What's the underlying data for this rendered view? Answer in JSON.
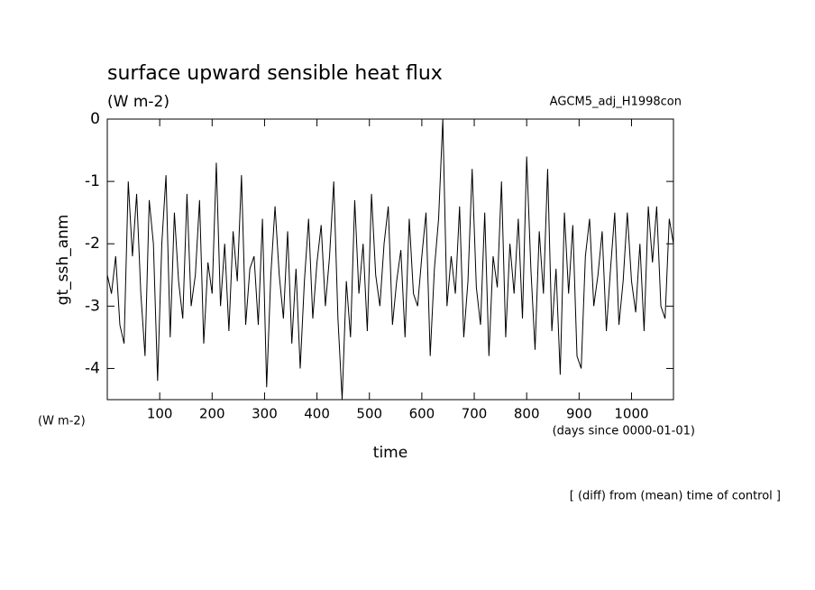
{
  "chart_data": {
    "type": "line",
    "title": "surface upward sensible heat flux",
    "subtitle": "(W m-2)",
    "dataset_label": "AGCM5_adj_H1998con",
    "ylabel": "gt_ssh_anm",
    "yunit_label": "(W m-2)",
    "xlabel": "time",
    "xunit_label": "(days since 0000-01-01)",
    "note": "[ (diff) from (mean) time of control ]",
    "xlim": [
      0,
      1080
    ],
    "ylim": [
      -4.5,
      0
    ],
    "xticks": [
      100,
      200,
      300,
      400,
      500,
      600,
      700,
      800,
      900,
      1000
    ],
    "yticks": [
      0,
      -1,
      -2,
      -3,
      -4
    ],
    "color": "#000000",
    "x": [
      0,
      8,
      16,
      24,
      32,
      40,
      48,
      56,
      64,
      72,
      80,
      88,
      96,
      104,
      112,
      120,
      128,
      136,
      144,
      152,
      160,
      168,
      176,
      184,
      192,
      200,
      208,
      216,
      224,
      232,
      240,
      248,
      256,
      264,
      272,
      280,
      288,
      296,
      304,
      312,
      320,
      328,
      336,
      344,
      352,
      360,
      368,
      376,
      384,
      392,
      400,
      408,
      416,
      424,
      432,
      440,
      448,
      456,
      464,
      472,
      480,
      488,
      496,
      504,
      512,
      520,
      528,
      536,
      544,
      552,
      560,
      568,
      576,
      584,
      592,
      600,
      608,
      616,
      624,
      632,
      640,
      648,
      656,
      664,
      672,
      680,
      688,
      696,
      704,
      712,
      720,
      728,
      736,
      744,
      752,
      760,
      768,
      776,
      784,
      792,
      800,
      808,
      816,
      824,
      832,
      840,
      848,
      856,
      864,
      872,
      880,
      888,
      896,
      904,
      912,
      920,
      928,
      936,
      944,
      952,
      960,
      968,
      976,
      984,
      992,
      1000,
      1008,
      1016,
      1024,
      1032,
      1040,
      1048,
      1056,
      1064,
      1072,
      1080
    ],
    "values": [
      -2.5,
      -2.8,
      -2.2,
      -3.3,
      -3.6,
      -1.0,
      -2.2,
      -1.2,
      -2.8,
      -3.8,
      -1.3,
      -2.0,
      -4.2,
      -2.0,
      -0.9,
      -3.5,
      -1.5,
      -2.6,
      -3.2,
      -1.2,
      -3.0,
      -2.5,
      -1.3,
      -3.6,
      -2.3,
      -2.8,
      -0.7,
      -3.0,
      -2.0,
      -3.4,
      -1.8,
      -2.6,
      -0.9,
      -3.3,
      -2.4,
      -2.2,
      -3.3,
      -1.6,
      -4.3,
      -2.5,
      -1.4,
      -2.5,
      -3.2,
      -1.8,
      -3.6,
      -2.4,
      -4.0,
      -2.6,
      -1.6,
      -3.2,
      -2.3,
      -1.7,
      -3.0,
      -2.2,
      -1.0,
      -3.2,
      -4.5,
      -2.6,
      -3.5,
      -1.3,
      -2.8,
      -2.0,
      -3.4,
      -1.2,
      -2.5,
      -3.0,
      -2.0,
      -1.4,
      -3.3,
      -2.6,
      -2.1,
      -3.5,
      -1.6,
      -2.8,
      -3.0,
      -2.2,
      -1.5,
      -3.8,
      -2.4,
      -1.6,
      0,
      -3.0,
      -2.2,
      -2.8,
      -1.4,
      -3.5,
      -2.6,
      -0.8,
      -2.7,
      -3.3,
      -1.5,
      -3.8,
      -2.2,
      -2.7,
      -1.0,
      -3.5,
      -2.0,
      -2.8,
      -1.6,
      -3.2,
      -0.6,
      -2.4,
      -3.7,
      -1.8,
      -2.8,
      -0.8,
      -3.4,
      -2.4,
      -4.1,
      -1.5,
      -2.8,
      -1.7,
      -3.8,
      -4.0,
      -2.2,
      -1.6,
      -3.0,
      -2.5,
      -1.8,
      -3.4,
      -2.4,
      -1.5,
      -3.3,
      -2.6,
      -1.5,
      -2.6,
      -3.1,
      -2.0,
      -3.4,
      -1.4,
      -2.3,
      -1.4,
      -3.0,
      -3.2,
      -1.6,
      -2.0
    ]
  }
}
